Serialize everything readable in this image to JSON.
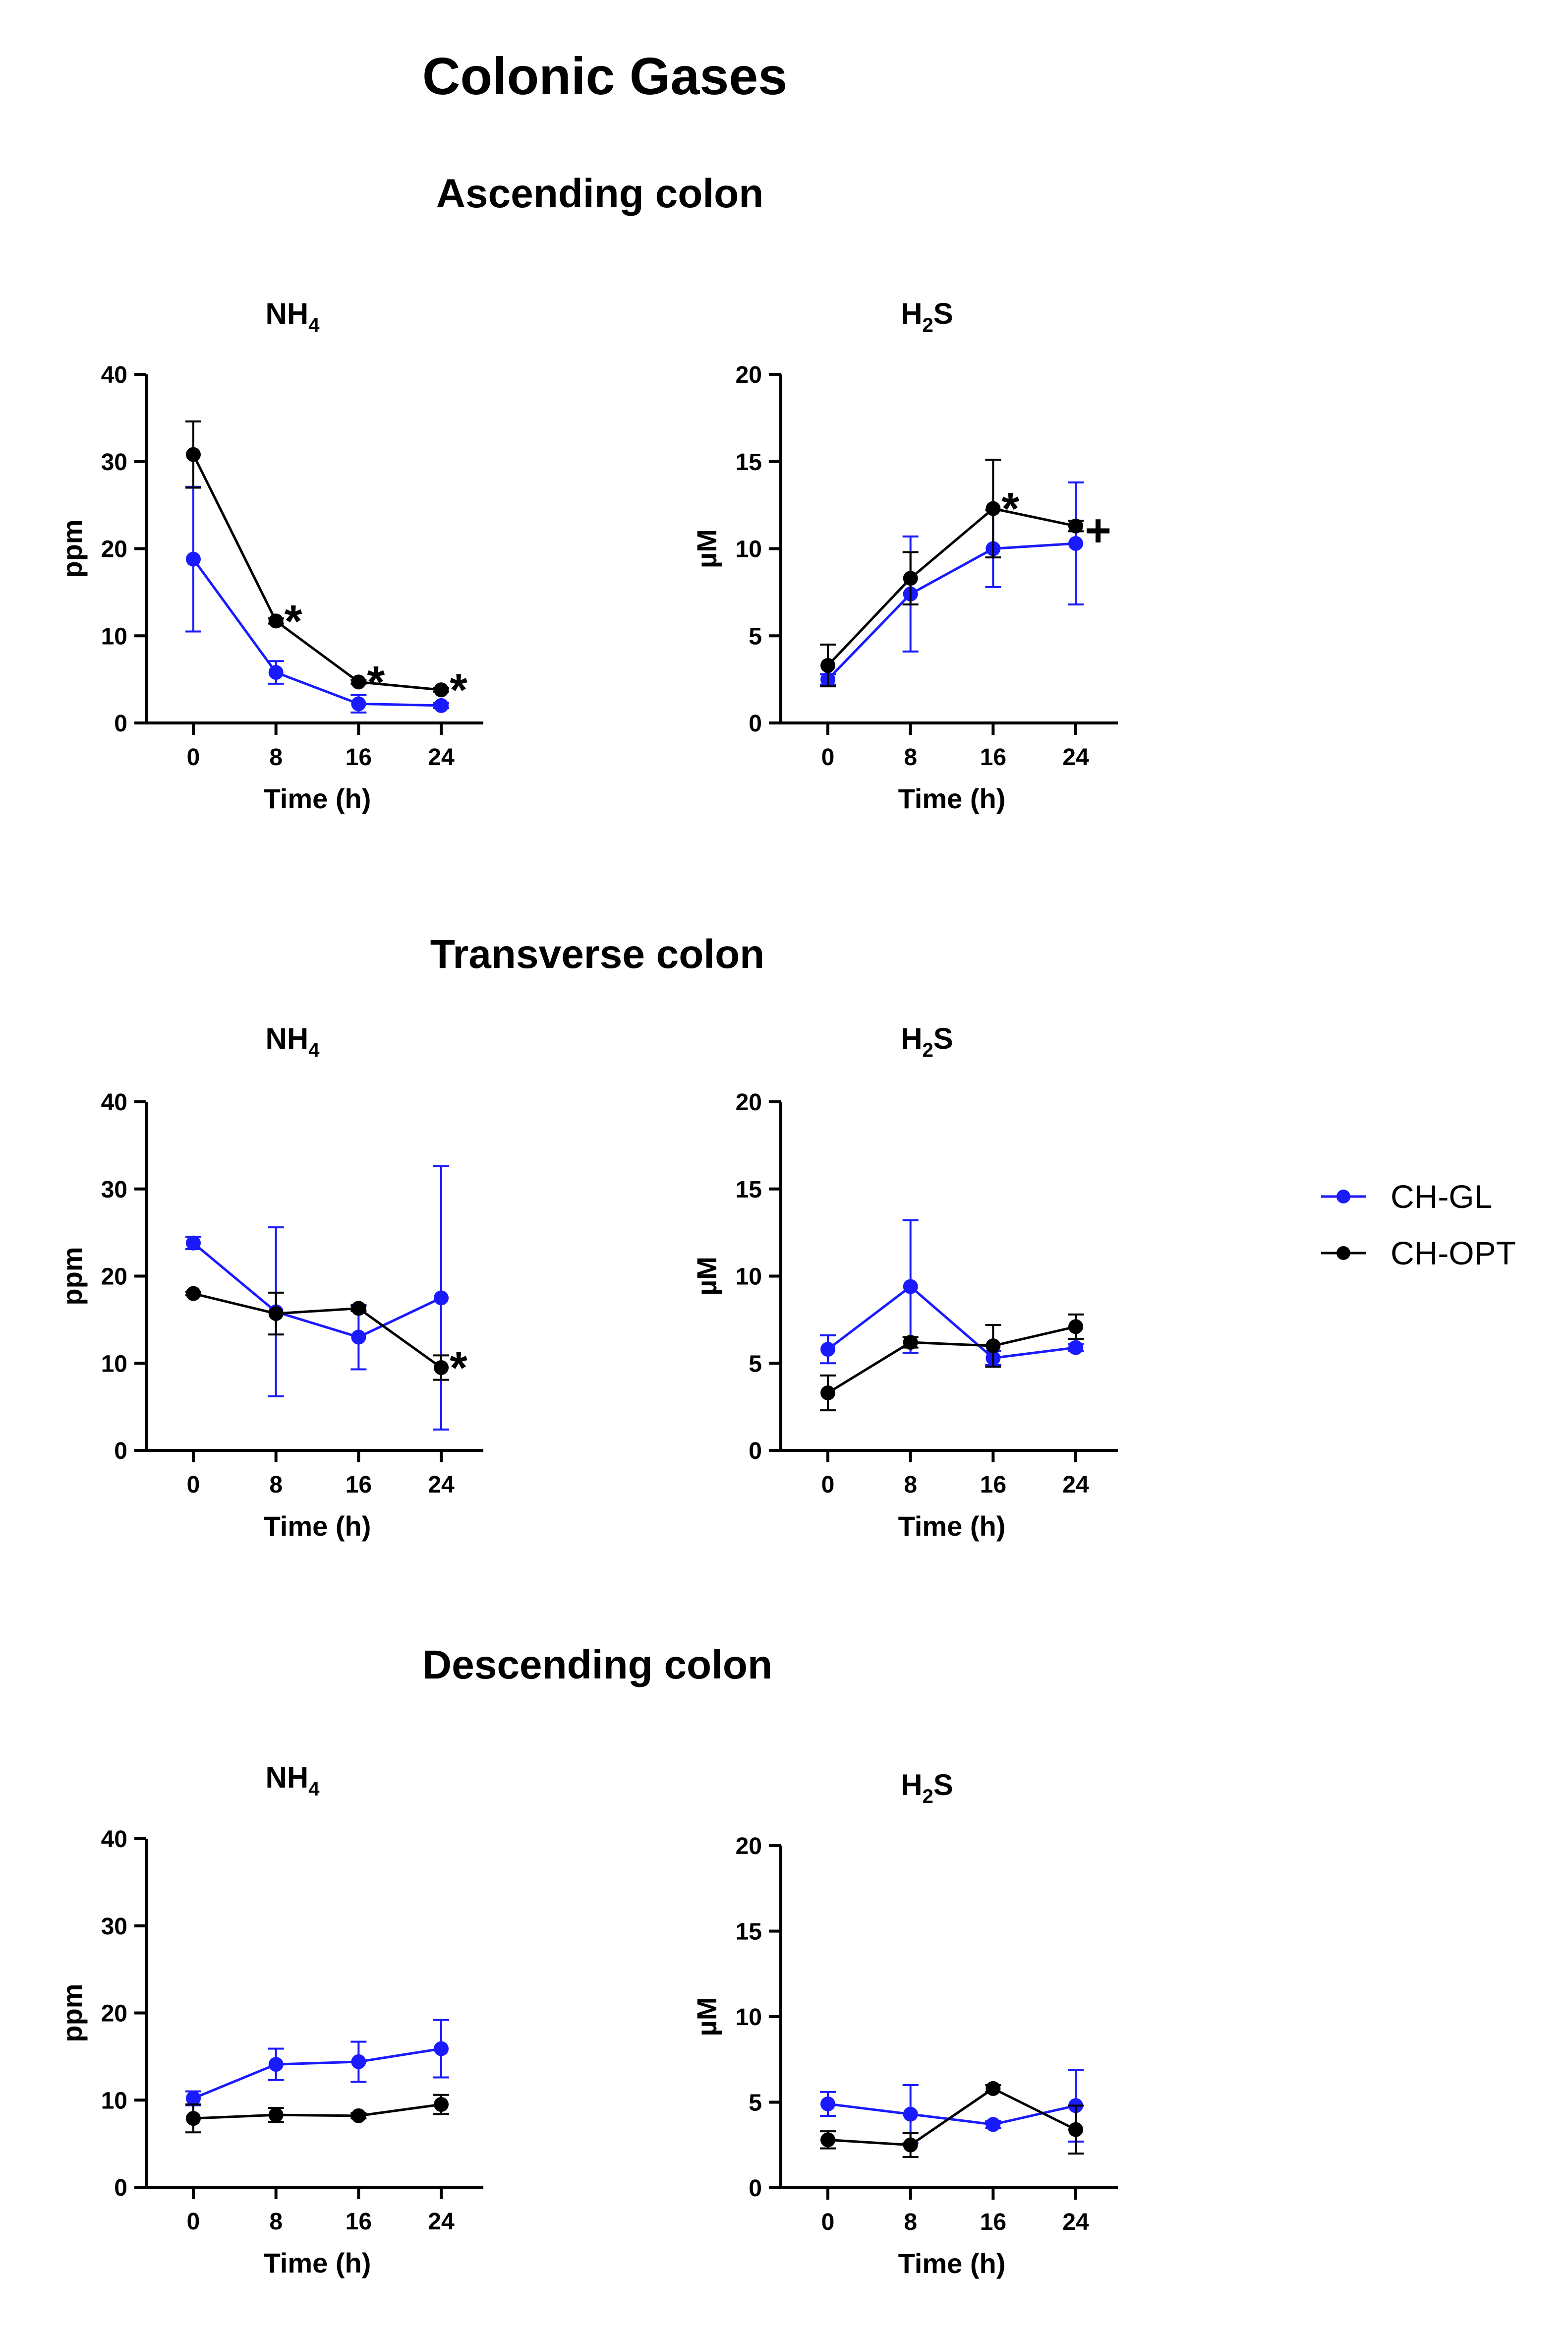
{
  "figure": {
    "title": "Colonic Gases",
    "legend": {
      "placement": "right",
      "entries": [
        {
          "name": "CH-GL",
          "color": "#1a1aff"
        },
        {
          "name": "CH-OPT",
          "color": "#000000"
        }
      ]
    }
  },
  "sections": [
    {
      "title": "Ascending colon"
    },
    {
      "title": "Transverse colon"
    },
    {
      "title": "Descending colon"
    }
  ],
  "chart_data": [
    {
      "type": "line",
      "section": "Ascending colon",
      "title": "NH",
      "title_sub": "4",
      "xlabel": "Time (h)",
      "ylabel": "ppm",
      "x": [
        0,
        8,
        16,
        24
      ],
      "xticks": [
        0,
        8,
        16,
        24
      ],
      "ylim": [
        0,
        40
      ],
      "yticks": [
        0,
        10,
        20,
        30,
        40
      ],
      "series": [
        {
          "name": "CH-GL",
          "color": "#1a1aff",
          "values": [
            18.8,
            5.8,
            2.2,
            2.0
          ],
          "err": [
            8.3,
            1.3,
            1.0,
            0.3
          ]
        },
        {
          "name": "CH-OPT",
          "color": "#000000",
          "values": [
            30.8,
            11.7,
            4.7,
            3.8
          ],
          "err": [
            3.8,
            0.3,
            0.2,
            0.2
          ]
        }
      ],
      "annotations": [
        {
          "x": 8,
          "y": 11.7,
          "text": "*"
        },
        {
          "x": 16,
          "y": 4.7,
          "text": "*"
        },
        {
          "x": 24,
          "y": 3.8,
          "text": "*"
        }
      ],
      "grid": false
    },
    {
      "type": "line",
      "section": "Ascending colon",
      "title": "H",
      "title_sub": "2",
      "title_tail": "S",
      "xlabel": "Time (h)",
      "ylabel": "µM",
      "x": [
        0,
        8,
        16,
        24
      ],
      "xticks": [
        0,
        8,
        16,
        24
      ],
      "ylim": [
        0,
        20
      ],
      "yticks": [
        0,
        5,
        10,
        15,
        20
      ],
      "series": [
        {
          "name": "CH-GL",
          "color": "#1a1aff",
          "values": [
            2.5,
            7.4,
            10.0,
            10.3
          ],
          "err": [
            0.3,
            3.3,
            2.2,
            3.5
          ]
        },
        {
          "name": "CH-OPT",
          "color": "#000000",
          "values": [
            3.3,
            8.3,
            12.3,
            11.3
          ],
          "err": [
            1.2,
            1.5,
            2.8,
            0.3
          ]
        }
      ],
      "annotations": [
        {
          "x": 16,
          "y": 12.3,
          "text": "*"
        },
        {
          "x": 24,
          "y": 11.3,
          "text": "+"
        }
      ],
      "grid": false
    },
    {
      "type": "line",
      "section": "Transverse colon",
      "title": "NH",
      "title_sub": "4",
      "xlabel": "Time (h)",
      "ylabel": "ppm",
      "x": [
        0,
        8,
        16,
        24
      ],
      "xticks": [
        0,
        8,
        16,
        24
      ],
      "ylim": [
        0,
        40
      ],
      "yticks": [
        0,
        10,
        20,
        30,
        40
      ],
      "series": [
        {
          "name": "CH-GL",
          "color": "#1a1aff",
          "values": [
            23.8,
            15.9,
            13.0,
            17.5
          ],
          "err": [
            0.7,
            9.7,
            3.7,
            15.1
          ]
        },
        {
          "name": "CH-OPT",
          "color": "#000000",
          "values": [
            18.0,
            15.7,
            16.3,
            9.5
          ],
          "err": [
            0.2,
            2.4,
            0.3,
            1.4
          ]
        }
      ],
      "annotations": [
        {
          "x": 24,
          "y": 9.5,
          "text": "*"
        }
      ],
      "grid": false
    },
    {
      "type": "line",
      "section": "Transverse colon",
      "title": "H",
      "title_sub": "2",
      "title_tail": "S",
      "xlabel": "Time (h)",
      "ylabel": "µM",
      "x": [
        0,
        8,
        16,
        24
      ],
      "xticks": [
        0,
        8,
        16,
        24
      ],
      "ylim": [
        0,
        20
      ],
      "yticks": [
        0,
        5,
        10,
        15,
        20
      ],
      "series": [
        {
          "name": "CH-GL",
          "color": "#1a1aff",
          "values": [
            5.8,
            9.4,
            5.3,
            5.9
          ],
          "err": [
            0.8,
            3.8,
            0.4,
            0.2
          ]
        },
        {
          "name": "CH-OPT",
          "color": "#000000",
          "values": [
            3.3,
            6.2,
            6.0,
            7.1
          ],
          "err": [
            1.0,
            0.3,
            1.2,
            0.7
          ]
        }
      ],
      "annotations": [],
      "grid": false
    },
    {
      "type": "line",
      "section": "Descending colon",
      "title": "NH",
      "title_sub": "4",
      "xlabel": "Time (h)",
      "ylabel": "ppm",
      "x": [
        0,
        8,
        16,
        24
      ],
      "xticks": [
        0,
        8,
        16,
        24
      ],
      "ylim": [
        0,
        40
      ],
      "yticks": [
        0,
        10,
        20,
        30,
        40
      ],
      "series": [
        {
          "name": "CH-GL",
          "color": "#1a1aff",
          "values": [
            10.2,
            14.1,
            14.4,
            15.9
          ],
          "err": [
            0.8,
            1.8,
            2.3,
            3.3
          ]
        },
        {
          "name": "CH-OPT",
          "color": "#000000",
          "values": [
            7.9,
            8.3,
            8.2,
            9.5
          ],
          "err": [
            1.6,
            0.8,
            0.3,
            1.1
          ]
        }
      ],
      "annotations": [],
      "grid": false
    },
    {
      "type": "line",
      "section": "Descending colon",
      "title": "H",
      "title_sub": "2",
      "title_tail": "S",
      "xlabel": "Time (h)",
      "ylabel": "µM",
      "x": [
        0,
        8,
        16,
        24
      ],
      "xticks": [
        0,
        8,
        16,
        24
      ],
      "ylim": [
        0,
        20
      ],
      "yticks": [
        0,
        5,
        10,
        15,
        20
      ],
      "series": [
        {
          "name": "CH-GL",
          "color": "#1a1aff",
          "values": [
            4.9,
            4.3,
            3.7,
            4.8
          ],
          "err": [
            0.7,
            1.7,
            0.2,
            2.1
          ]
        },
        {
          "name": "CH-OPT",
          "color": "#000000",
          "values": [
            2.8,
            2.5,
            5.8,
            3.4
          ],
          "err": [
            0.5,
            0.7,
            0.2,
            1.4
          ]
        }
      ],
      "annotations": [],
      "grid": false
    }
  ]
}
